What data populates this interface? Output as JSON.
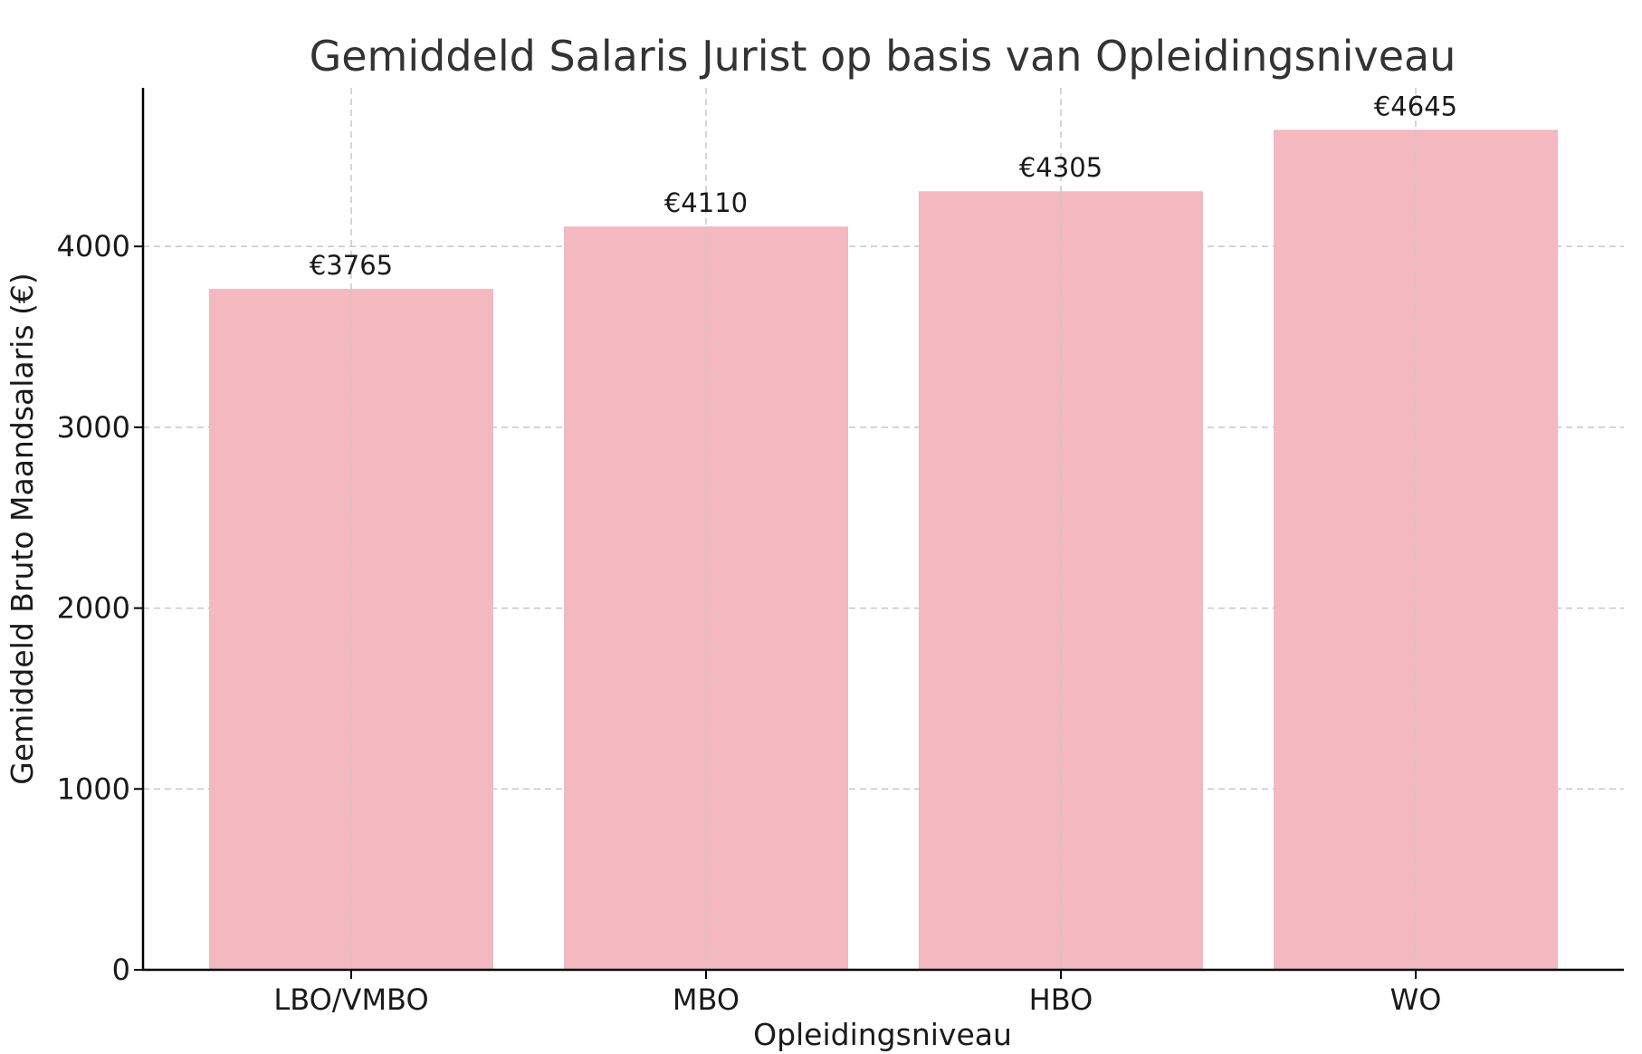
{
  "chart_data": {
    "type": "bar",
    "title": "Gemiddeld Salaris Jurist op basis van Opleidingsniveau",
    "xlabel": "Opleidingsniveau",
    "ylabel": "Gemiddeld Bruto Maandsalaris (€)",
    "categories": [
      "LBO/VMBO",
      "MBO",
      "HBO",
      "WO"
    ],
    "values": [
      3765,
      4110,
      4305,
      4645
    ],
    "data_labels": [
      "€3765",
      "€4110",
      "€4305",
      "€4645"
    ],
    "yticks": [
      0,
      1000,
      2000,
      3000,
      4000
    ],
    "ylim": [
      0,
      4877
    ],
    "grid": true,
    "bar_color": "#f4b8c0"
  }
}
